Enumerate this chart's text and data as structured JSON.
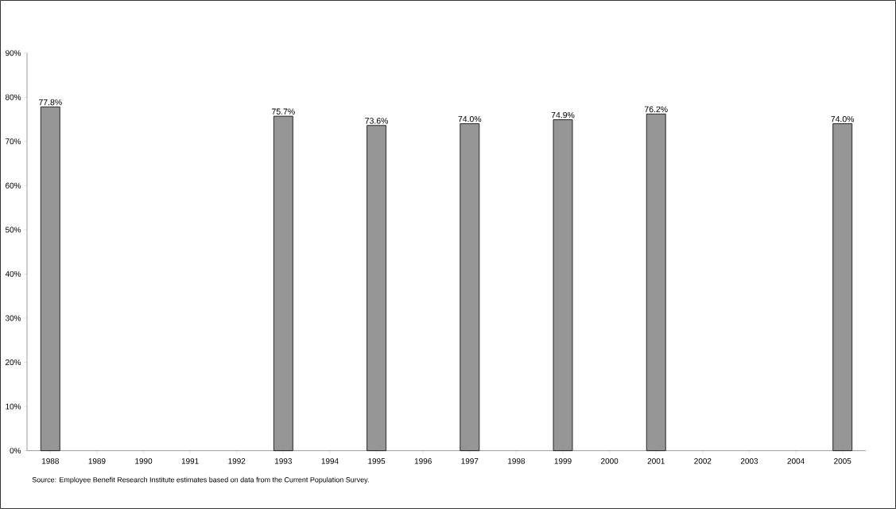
{
  "chart_data": {
    "type": "bar",
    "categories": [
      "1988",
      "1989",
      "1990",
      "1991",
      "1992",
      "1993",
      "1994",
      "1995",
      "1996",
      "1997",
      "1998",
      "1999",
      "2000",
      "2001",
      "2002",
      "2003",
      "2004",
      "2005"
    ],
    "values": [
      77.8,
      null,
      null,
      null,
      null,
      75.7,
      null,
      73.6,
      null,
      74.0,
      null,
      74.9,
      null,
      76.2,
      null,
      null,
      null,
      74.0
    ],
    "value_labels": [
      "77.8%",
      null,
      null,
      null,
      null,
      "75.7%",
      null,
      "73.6%",
      null,
      "74.0%",
      null,
      "74.9%",
      null,
      "76.2%",
      null,
      null,
      null,
      "74.0%"
    ],
    "color": "#969696",
    "ylim": [
      0,
      90
    ],
    "yticks": [
      {
        "value": 0,
        "label": "0%"
      },
      {
        "value": 10,
        "label": "10%"
      },
      {
        "value": 20,
        "label": "20%"
      },
      {
        "value": 30,
        "label": "30%"
      },
      {
        "value": 40,
        "label": "40%"
      },
      {
        "value": 50,
        "label": "50%"
      },
      {
        "value": 60,
        "label": "60%"
      },
      {
        "value": 70,
        "label": "70%"
      },
      {
        "value": 80,
        "label": "80%"
      },
      {
        "value": 90,
        "label": "90%"
      }
    ],
    "annotations": [
      "Source: Employee Benefit Research Institute estimates based on data from the Current Population Survey."
    ]
  }
}
